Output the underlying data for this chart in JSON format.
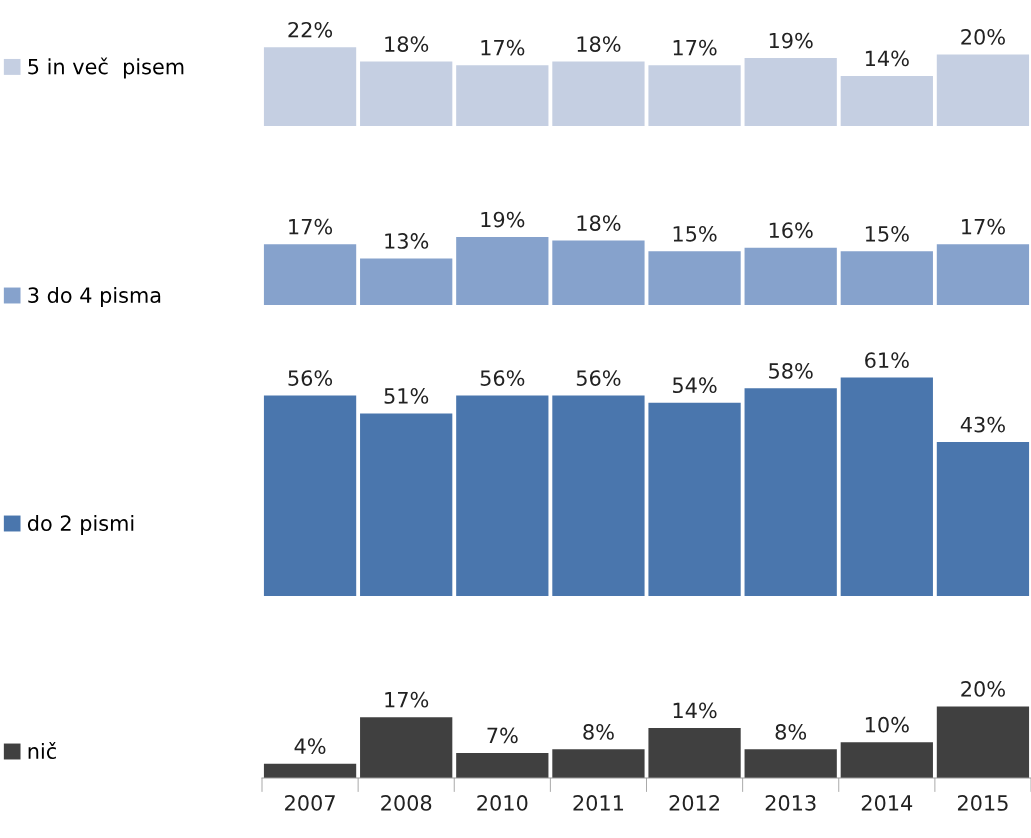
{
  "chart_data": [
    {
      "type": "bar",
      "categories": [
        "2007",
        "2008",
        "2010",
        "2011",
        "2012",
        "2013",
        "2014",
        "2015"
      ],
      "tick_labels": false,
      "legend": "left",
      "series": [
        {
          "name": "5 in več  pisem",
          "color": "#c5cfe2",
          "values": [
            22,
            18,
            17,
            18,
            17,
            19,
            14,
            20
          ],
          "value_labels": [
            "22%",
            "18%",
            "17%",
            "18%",
            "17%",
            "19%",
            "14%",
            "20%"
          ]
        }
      ]
    },
    {
      "type": "bar",
      "categories": [
        "2007",
        "2008",
        "2010",
        "2011",
        "2012",
        "2013",
        "2014",
        "2015"
      ],
      "tick_labels": false,
      "legend": "left",
      "series": [
        {
          "name": "3 do 4 pisma",
          "color": "#86a2cc",
          "values": [
            17,
            13,
            19,
            18,
            15,
            16,
            15,
            17
          ],
          "value_labels": [
            "17%",
            "13%",
            "19%",
            "18%",
            "15%",
            "16%",
            "15%",
            "17%"
          ]
        }
      ]
    },
    {
      "type": "bar",
      "categories": [
        "2007",
        "2008",
        "2010",
        "2011",
        "2012",
        "2013",
        "2014",
        "2015"
      ],
      "tick_labels": false,
      "legend": "left",
      "series": [
        {
          "name": "do 2 pismi",
          "color": "#4a76ad",
          "values": [
            56,
            51,
            56,
            56,
            54,
            58,
            61,
            43
          ],
          "value_labels": [
            "56%",
            "51%",
            "56%",
            "56%",
            "54%",
            "58%",
            "61%",
            "43%"
          ]
        }
      ]
    },
    {
      "type": "bar",
      "categories": [
        "2007",
        "2008",
        "2010",
        "2011",
        "2012",
        "2013",
        "2014",
        "2015"
      ],
      "tick_labels": "x",
      "legend": "left",
      "series": [
        {
          "name": "nič",
          "color": "#404040",
          "values": [
            4,
            17,
            7,
            8,
            14,
            8,
            10,
            20
          ],
          "value_labels": [
            "4%",
            "17%",
            "7%",
            "8%",
            "14%",
            "8%",
            "10%",
            "20%"
          ]
        }
      ]
    }
  ]
}
